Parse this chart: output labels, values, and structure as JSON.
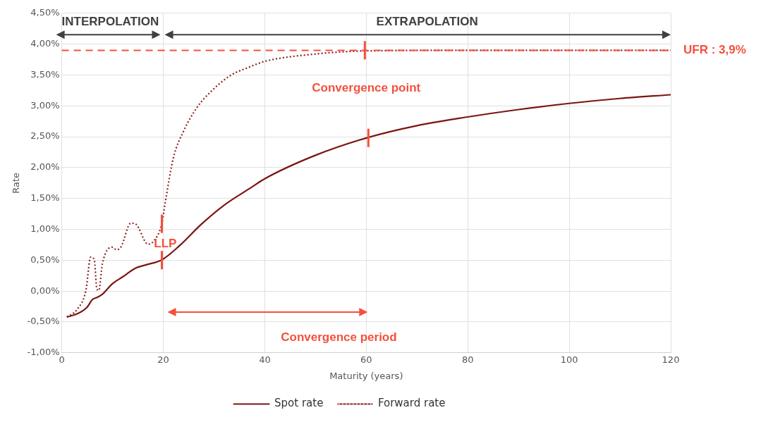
{
  "chart_data": {
    "type": "line",
    "xlabel": "Maturity (years)",
    "ylabel": "Rate",
    "xlim": [
      0,
      120
    ],
    "xticks": [
      0,
      20,
      40,
      60,
      80,
      100,
      120
    ],
    "ylim": [
      -1,
      4.5
    ],
    "yticks": [
      {
        "value": -1,
        "label": "-1,00%"
      },
      {
        "value": -0.5,
        "label": "-0,50%"
      },
      {
        "value": 0,
        "label": "0,00%"
      },
      {
        "value": 0.5,
        "label": "0,50%"
      },
      {
        "value": 1,
        "label": "1,00%"
      },
      {
        "value": 1.5,
        "label": "1,50%"
      },
      {
        "value": 2,
        "label": "2,00%"
      },
      {
        "value": 2.5,
        "label": "2,50%"
      },
      {
        "value": 3,
        "label": "3,00%"
      },
      {
        "value": 3.5,
        "label": "3,50%"
      },
      {
        "value": 4,
        "label": "4,00%"
      },
      {
        "value": 4.5,
        "label": "4,50%"
      }
    ],
    "grid": true,
    "legend": "bottom",
    "series": [
      {
        "name": "Spot rate",
        "color": "#7b1512",
        "line_style": "solid",
        "x": [
          1,
          3,
          5,
          6,
          7,
          8,
          10,
          12,
          14.5,
          16.4,
          19.8,
          23,
          27.6,
          32.3,
          37,
          40,
          50,
          60,
          70,
          80,
          90,
          100,
          110,
          120
        ],
        "values": [
          -0.42,
          -0.37,
          -0.26,
          -0.14,
          -0.1,
          -0.05,
          0.12,
          0.23,
          0.37,
          0.42,
          0.51,
          0.72,
          1.09,
          1.41,
          1.66,
          1.82,
          2.2,
          2.48,
          2.68,
          2.82,
          2.94,
          3.04,
          3.12,
          3.18
        ]
      },
      {
        "name": "Forward rate",
        "color": "#8b2420",
        "line_style": "dotted",
        "x": [
          1,
          3,
          4.75,
          5.7,
          6.4,
          6.9,
          7.3,
          8,
          9.9,
          10.8,
          11.7,
          13.6,
          14.5,
          17,
          18,
          19.7,
          20.4,
          22,
          24,
          26.7,
          29.5,
          33.2,
          37,
          40,
          50,
          60,
          80,
          100,
          120
        ],
        "values": [
          -0.42,
          -0.3,
          0.01,
          0.55,
          0.51,
          0.04,
          0.01,
          0.44,
          0.71,
          0.67,
          0.72,
          1.1,
          1.09,
          0.76,
          0.8,
          1.09,
          1.44,
          2.16,
          2.59,
          2.98,
          3.24,
          3.49,
          3.63,
          3.72,
          3.84,
          3.89,
          3.9,
          3.9,
          3.9
        ]
      }
    ],
    "ref_lines": [
      {
        "axis": "y",
        "value": 3.9,
        "label": "UFR : 3,9%",
        "color": "#f4503c",
        "line_style": "dashed"
      }
    ],
    "annotations": [
      "INTERPOLATION",
      "EXTRAPOLATION",
      "Convergence point",
      "Convergence period",
      "LLP"
    ]
  }
}
